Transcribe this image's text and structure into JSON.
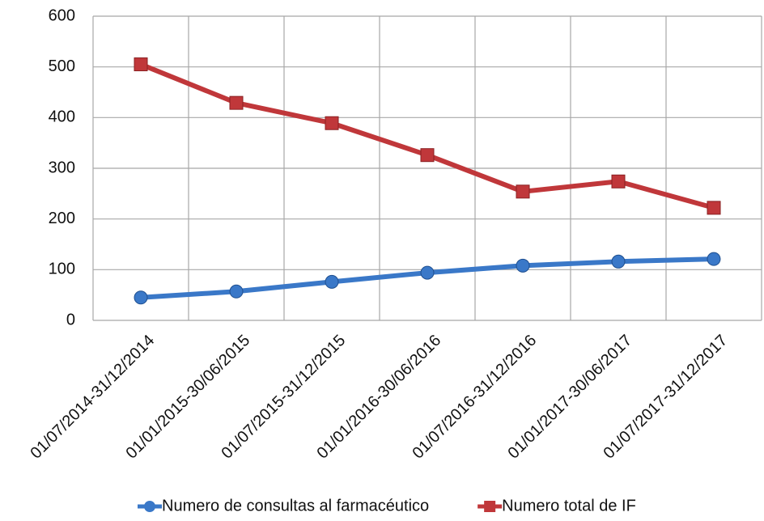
{
  "chart_data": {
    "type": "line",
    "categories": [
      "01/07/2014-31/12/2014",
      "01/01/2015-30/06/2015",
      "01/07/2015-31/12/2015",
      "01/01/2016-30/06/2016",
      "01/07/2016-31/12/2016",
      "01/01/2017-30/06/2017",
      "01/07/2017-31/12/2017"
    ],
    "series": [
      {
        "name": "Numero de consultas al farmacéutico",
        "color": "#3a78c8",
        "marker": "circle",
        "values": [
          45,
          57,
          76,
          94,
          108,
          116,
          121
        ]
      },
      {
        "name": "Numero total de IF",
        "color": "#c0373a",
        "marker": "square",
        "values": [
          505,
          429,
          389,
          326,
          254,
          274,
          222
        ]
      }
    ],
    "ylim": [
      0,
      600
    ],
    "yticks": [
      0,
      100,
      200,
      300,
      400,
      500,
      600
    ],
    "grid": true,
    "legend": "bottom"
  }
}
